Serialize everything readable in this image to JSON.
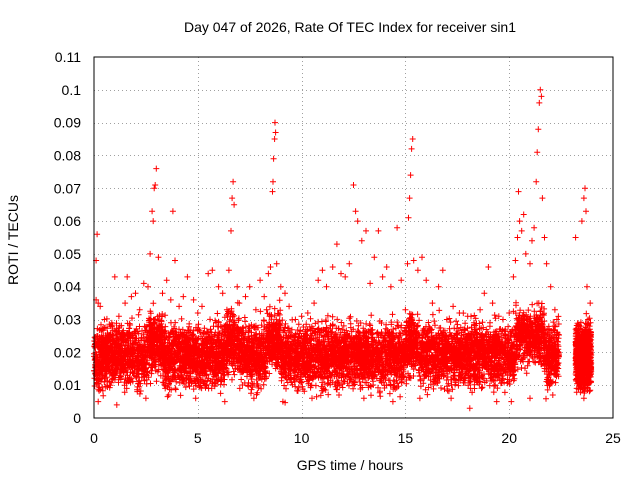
{
  "chart_data": {
    "type": "scatter",
    "title": "Day 047 of 2026, Rate Of TEC Index for receiver sin1",
    "xlabel": "GPS time / hours",
    "ylabel": "ROTI / TECUs",
    "xlim": [
      0,
      25
    ],
    "ylim": [
      0,
      0.11
    ],
    "x_ticks": [
      0,
      5,
      10,
      15,
      20,
      25
    ],
    "x_tick_labels": [
      "0",
      "5",
      "10",
      "15",
      "20",
      "25"
    ],
    "y_ticks": [
      0,
      0.01,
      0.02,
      0.03,
      0.04,
      0.05,
      0.06,
      0.07,
      0.08,
      0.09,
      0.1,
      0.11
    ],
    "y_tick_labels": [
      "0",
      "0.01",
      "0.02",
      "0.03",
      "0.04",
      "0.05",
      "0.06",
      "0.07",
      "0.08",
      "0.09",
      "0.1",
      "0.11"
    ],
    "grid": true,
    "marker": "+",
    "color": "#ff0000",
    "series": [
      {
        "points": [
          [
            0.1,
            0.036
          ],
          [
            0.1,
            0.048
          ],
          [
            0.15,
            0.056
          ],
          [
            0.2,
            0.035
          ],
          [
            0.3,
            0.034
          ],
          [
            0.5,
            0.03
          ],
          [
            0.8,
            0.028
          ],
          [
            1.0,
            0.043
          ],
          [
            1.2,
            0.031
          ],
          [
            1.5,
            0.035
          ],
          [
            1.6,
            0.043
          ],
          [
            1.8,
            0.037
          ],
          [
            2.0,
            0.038
          ],
          [
            2.2,
            0.033
          ],
          [
            2.4,
            0.041
          ],
          [
            2.6,
            0.04
          ],
          [
            2.7,
            0.05
          ],
          [
            2.8,
            0.063
          ],
          [
            2.85,
            0.06
          ],
          [
            2.9,
            0.07
          ],
          [
            2.95,
            0.071
          ],
          [
            3.0,
            0.076
          ],
          [
            3.1,
            0.049
          ],
          [
            3.3,
            0.038
          ],
          [
            3.5,
            0.042
          ],
          [
            3.7,
            0.036
          ],
          [
            3.8,
            0.063
          ],
          [
            3.9,
            0.048
          ],
          [
            4.1,
            0.034
          ],
          [
            4.3,
            0.037
          ],
          [
            4.5,
            0.043
          ],
          [
            4.8,
            0.036
          ],
          [
            5.0,
            0.032
          ],
          [
            5.2,
            0.034
          ],
          [
            5.5,
            0.044
          ],
          [
            5.7,
            0.045
          ],
          [
            6.0,
            0.04
          ],
          [
            6.2,
            0.038
          ],
          [
            6.5,
            0.045
          ],
          [
            6.6,
            0.057
          ],
          [
            6.65,
            0.067
          ],
          [
            6.7,
            0.072
          ],
          [
            6.75,
            0.065
          ],
          [
            6.9,
            0.04
          ],
          [
            7.0,
            0.035
          ],
          [
            7.3,
            0.037
          ],
          [
            7.5,
            0.04
          ],
          [
            7.8,
            0.033
          ],
          [
            8.0,
            0.042
          ],
          [
            8.2,
            0.037
          ],
          [
            8.4,
            0.044
          ],
          [
            8.5,
            0.046
          ],
          [
            8.6,
            0.069
          ],
          [
            8.62,
            0.072
          ],
          [
            8.65,
            0.079
          ],
          [
            8.7,
            0.085
          ],
          [
            8.72,
            0.09
          ],
          [
            8.75,
            0.087
          ],
          [
            8.8,
            0.047
          ],
          [
            9.0,
            0.04
          ],
          [
            9.2,
            0.038
          ],
          [
            9.4,
            0.034
          ],
          [
            9.7,
            0.03
          ],
          [
            10.0,
            0.031
          ],
          [
            10.3,
            0.032
          ],
          [
            10.6,
            0.035
          ],
          [
            10.8,
            0.042
          ],
          [
            11.0,
            0.045
          ],
          [
            11.2,
            0.04
          ],
          [
            11.5,
            0.046
          ],
          [
            11.7,
            0.053
          ],
          [
            11.9,
            0.044
          ],
          [
            12.1,
            0.043
          ],
          [
            12.3,
            0.047
          ],
          [
            12.5,
            0.071
          ],
          [
            12.6,
            0.063
          ],
          [
            12.7,
            0.06
          ],
          [
            12.9,
            0.054
          ],
          [
            13.1,
            0.057
          ],
          [
            13.3,
            0.041
          ],
          [
            13.5,
            0.049
          ],
          [
            13.7,
            0.057
          ],
          [
            13.9,
            0.043
          ],
          [
            14.1,
            0.046
          ],
          [
            14.3,
            0.04
          ],
          [
            14.6,
            0.058
          ],
          [
            14.8,
            0.042
          ],
          [
            15.0,
            0.033
          ],
          [
            15.1,
            0.047
          ],
          [
            15.15,
            0.061
          ],
          [
            15.2,
            0.067
          ],
          [
            15.25,
            0.074
          ],
          [
            15.3,
            0.082
          ],
          [
            15.35,
            0.085
          ],
          [
            15.4,
            0.048
          ],
          [
            15.6,
            0.045
          ],
          [
            15.8,
            0.049
          ],
          [
            16.0,
            0.042
          ],
          [
            16.3,
            0.035
          ],
          [
            16.6,
            0.04
          ],
          [
            16.8,
            0.045
          ],
          [
            17.0,
            0.03
          ],
          [
            17.3,
            0.034
          ],
          [
            17.6,
            0.032
          ],
          [
            18.0,
            0.031
          ],
          [
            18.3,
            0.029
          ],
          [
            18.6,
            0.033
          ],
          [
            18.8,
            0.038
          ],
          [
            19.0,
            0.046
          ],
          [
            19.2,
            0.035
          ],
          [
            19.5,
            0.031
          ],
          [
            19.7,
            0.03
          ],
          [
            20.0,
            0.032
          ],
          [
            20.2,
            0.043
          ],
          [
            20.3,
            0.048
          ],
          [
            20.4,
            0.055
          ],
          [
            20.45,
            0.069
          ],
          [
            20.5,
            0.06
          ],
          [
            20.6,
            0.057
          ],
          [
            20.7,
            0.062
          ],
          [
            20.8,
            0.05
          ],
          [
            21.0,
            0.047
          ],
          [
            21.1,
            0.054
          ],
          [
            21.2,
            0.058
          ],
          [
            21.3,
            0.072
          ],
          [
            21.35,
            0.081
          ],
          [
            21.4,
            0.088
          ],
          [
            21.45,
            0.096
          ],
          [
            21.5,
            0.1
          ],
          [
            21.55,
            0.098
          ],
          [
            21.6,
            0.067
          ],
          [
            21.7,
            0.055
          ],
          [
            21.8,
            0.047
          ],
          [
            22.0,
            0.04
          ],
          [
            22.2,
            0.033
          ],
          [
            22.3,
            0.03
          ],
          [
            23.2,
            0.055
          ],
          [
            23.5,
            0.06
          ],
          [
            23.6,
            0.067
          ],
          [
            23.65,
            0.07
          ],
          [
            23.7,
            0.063
          ],
          [
            23.75,
            0.04
          ],
          [
            23.8,
            0.03
          ],
          [
            23.9,
            0.035
          ],
          [
            0.2,
            0.005
          ],
          [
            1.1,
            0.004
          ],
          [
            2.5,
            0.006
          ],
          [
            3.6,
            0.007
          ],
          [
            4.9,
            0.006
          ],
          [
            6.3,
            0.005
          ],
          [
            7.7,
            0.006
          ],
          [
            9.1,
            0.005
          ],
          [
            10.5,
            0.006
          ],
          [
            11.8,
            0.007
          ],
          [
            13.0,
            0.006
          ],
          [
            14.4,
            0.005
          ],
          [
            15.7,
            0.006
          ],
          [
            17.2,
            0.006
          ],
          [
            18.1,
            0.003
          ],
          [
            19.4,
            0.005
          ],
          [
            20.1,
            0.005
          ],
          [
            21.0,
            0.006
          ],
          [
            22.1,
            0.007
          ],
          [
            23.6,
            0.006
          ]
        ]
      }
    ]
  }
}
